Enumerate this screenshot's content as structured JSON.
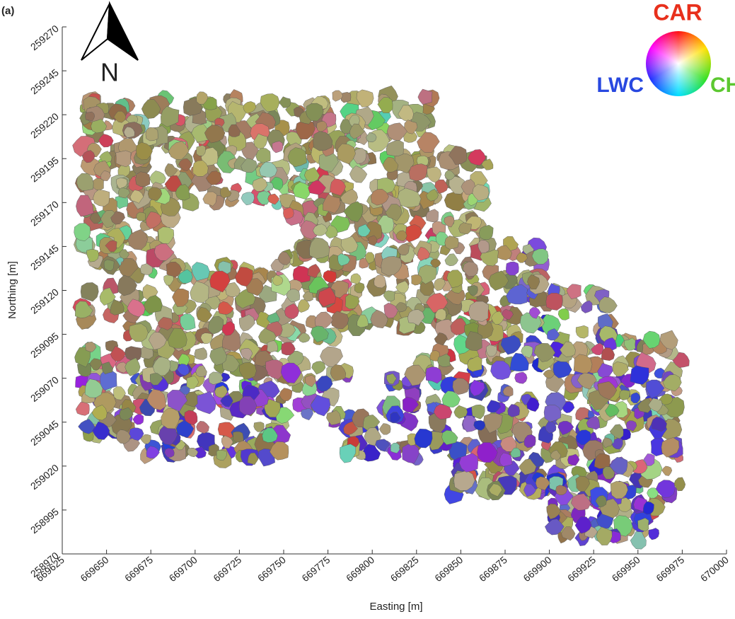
{
  "chart_data": {
    "type": "map",
    "panel_label": "(a)",
    "north_label": "N",
    "x_label": "Easting [m]",
    "y_label": "Northing [m]",
    "legend_labels": {
      "top": "CAR",
      "left": "LWC",
      "right": "CH"
    },
    "xlim": [
      669625,
      670000
    ],
    "ylim": [
      258970,
      259270
    ],
    "xticks": [
      669625,
      669650,
      669675,
      669700,
      669725,
      669750,
      669775,
      669800,
      669825,
      669850,
      669875,
      669900,
      669925,
      669950,
      669975,
      670000
    ],
    "yticks": [
      258970,
      258995,
      259020,
      259045,
      259070,
      259095,
      259120,
      259145,
      259170,
      259195,
      259220,
      259245,
      259270
    ]
  }
}
